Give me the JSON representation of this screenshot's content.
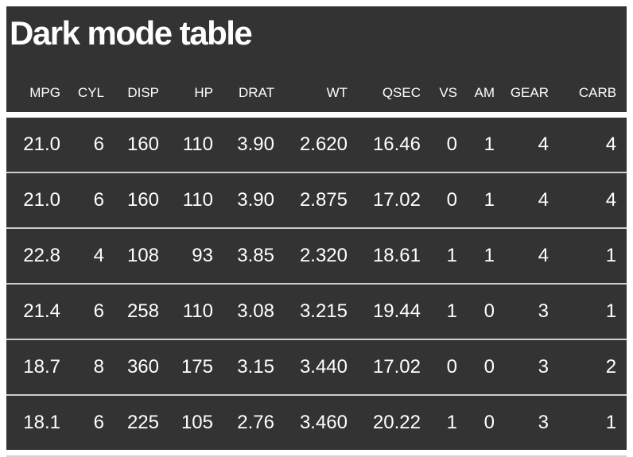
{
  "chart_data": {
    "type": "table",
    "title": "Dark mode table",
    "columns": [
      "MPG",
      "CYL",
      "DISP",
      "HP",
      "DRAT",
      "WT",
      "QSEC",
      "VS",
      "AM",
      "GEAR",
      "CARB"
    ],
    "rows": [
      [
        "21.0",
        "6",
        "160",
        "110",
        "3.90",
        "2.620",
        "16.46",
        "0",
        "1",
        "4",
        "4"
      ],
      [
        "21.0",
        "6",
        "160",
        "110",
        "3.90",
        "2.875",
        "17.02",
        "0",
        "1",
        "4",
        "4"
      ],
      [
        "22.8",
        "4",
        "108",
        "93",
        "3.85",
        "2.320",
        "18.61",
        "1",
        "1",
        "4",
        "1"
      ],
      [
        "21.4",
        "6",
        "258",
        "110",
        "3.08",
        "3.215",
        "19.44",
        "1",
        "0",
        "3",
        "1"
      ],
      [
        "18.7",
        "8",
        "360",
        "175",
        "3.15",
        "3.440",
        "17.02",
        "0",
        "0",
        "3",
        "2"
      ],
      [
        "18.1",
        "6",
        "225",
        "105",
        "2.76",
        "3.460",
        "20.22",
        "1",
        "0",
        "3",
        "1"
      ]
    ],
    "layout": {
      "column_alignment": "right",
      "grid": "horizontal-rules-only"
    },
    "colors": {
      "table_background": "#333333",
      "text": "#ffffff",
      "header_rule": "#ffffff",
      "row_rule": "#cccccc",
      "outer_bottom_rule": "#d2d2d2",
      "page_background": "#ffffff"
    }
  }
}
